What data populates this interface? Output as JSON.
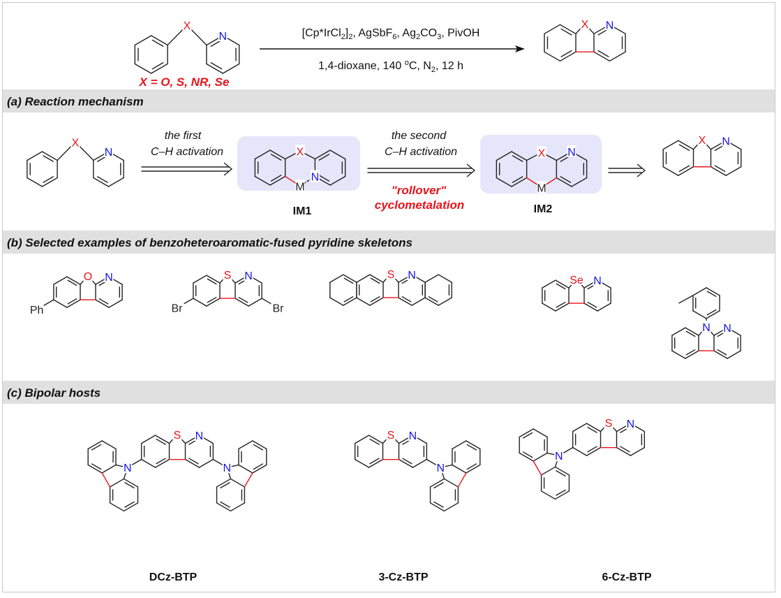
{
  "colors": {
    "heteroatom_red": "#e8141b",
    "nitrogen_blue": "#1414e6",
    "section_band": "#e0e0e0",
    "intermediate_box": "#e6e6fa",
    "new_bond": "#e8141b"
  },
  "scheme": {
    "x_definition": "X = O, S, NR, Se",
    "conditions_top": [
      {
        "t": "[Cp*IrCl"
      },
      {
        "t": "2",
        "sub": true
      },
      {
        "t": "]"
      },
      {
        "t": "2",
        "sub": true
      },
      {
        "t": ", AgSbF"
      },
      {
        "t": "6",
        "sub": true
      },
      {
        "t": ", Ag"
      },
      {
        "t": "2",
        "sub": true
      },
      {
        "t": "CO"
      },
      {
        "t": "3",
        "sub": true
      },
      {
        "t": ", PivOH"
      }
    ],
    "conditions_bottom": [
      {
        "t": "1,4-dioxane, 140 "
      },
      {
        "t": "o",
        "sup": true
      },
      {
        "t": "C, N"
      },
      {
        "t": "2",
        "sub": true
      },
      {
        "t": ", 12 h"
      }
    ]
  },
  "sections": {
    "a": "(a) Reaction mechanism",
    "b": "(b) Selected examples of benzoheteroaromatic-fused pyridine skeletons",
    "c": "(c) Bipolar hosts"
  },
  "mechanism": {
    "step1": [
      "the first",
      "C–H activation"
    ],
    "step2": [
      "the second",
      "C–H activation"
    ],
    "step2_note": [
      "\"rollover\"",
      "cyclometalation"
    ],
    "im1": "IM1",
    "im2": "IM2"
  },
  "atoms": {
    "X": "X",
    "N": "N",
    "O": "O",
    "S": "S",
    "Se": "Se",
    "M": "M",
    "Ph": "Ph",
    "Br": "Br"
  },
  "compounds": {
    "c1": "DCz-BTP",
    "c2": "3-Cz-BTP",
    "c3": "6-Cz-BTP"
  }
}
